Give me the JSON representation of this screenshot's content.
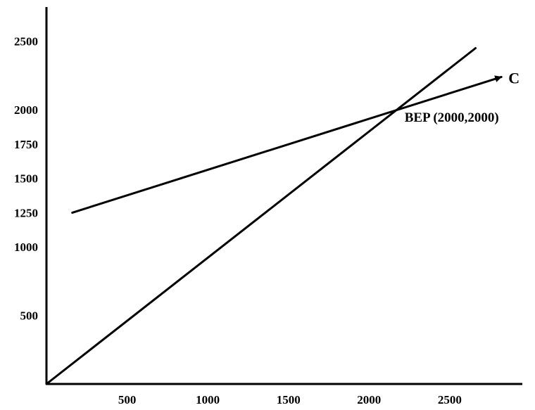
{
  "chart_data": {
    "type": "line",
    "title": "",
    "xlabel": "",
    "ylabel": "",
    "xlim": [
      0,
      2950
    ],
    "ylim": [
      0,
      2750
    ],
    "x_ticks": [
      500,
      1000,
      1500,
      2000,
      2500
    ],
    "x_tick_labels": [
      "500",
      "1000",
      "1500",
      "2000",
      "2500"
    ],
    "y_ticks": [
      500,
      1000,
      1250,
      1500,
      1750,
      2000,
      2500
    ],
    "y_tick_labels": [
      "500",
      "1000",
      "1250",
      "1500",
      "1750",
      "2000",
      "2500"
    ],
    "grid": false,
    "series": [
      {
        "name": "C",
        "x": [
          160,
          2820
        ],
        "y": [
          1250,
          2240
        ],
        "color": "#000000",
        "arrow_end": true
      },
      {
        "x": [
          0,
          2660
        ],
        "y": [
          0,
          2450
        ],
        "color": "#000000"
      }
    ],
    "annotations": [
      {
        "text": "BEP (2000,2000)",
        "x": 2220,
        "y": 1950
      }
    ]
  }
}
